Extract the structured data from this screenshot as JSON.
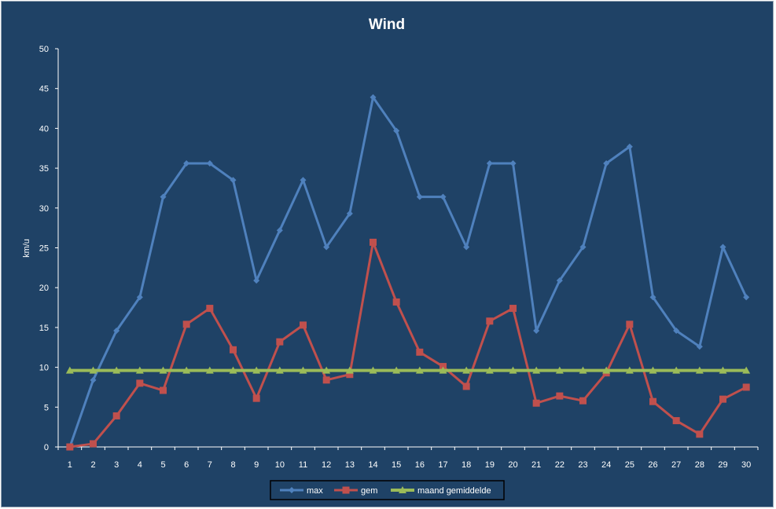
{
  "chart_data": {
    "type": "line",
    "title": "Wind",
    "xlabel": "",
    "ylabel": "km/u",
    "ylim": [
      0,
      50
    ],
    "yticks": [
      "0",
      "5",
      "10",
      "15",
      "20",
      "25",
      "30",
      "35",
      "40",
      "45",
      "50"
    ],
    "categories": [
      "1",
      "2",
      "3",
      "4",
      "5",
      "6",
      "7",
      "8",
      "9",
      "10",
      "11",
      "12",
      "13",
      "14",
      "15",
      "16",
      "17",
      "18",
      "19",
      "20",
      "21",
      "22",
      "23",
      "24",
      "25",
      "26",
      "27",
      "28",
      "29",
      "30"
    ],
    "grid": false,
    "legend_position": "bottom",
    "series": [
      {
        "name": "max",
        "color": "#4f81bd",
        "marker": "diamond",
        "values": [
          0,
          8.4,
          14.6,
          18.8,
          31.4,
          35.6,
          35.6,
          33.5,
          20.9,
          27.2,
          33.5,
          25.1,
          29.3,
          43.9,
          39.7,
          31.4,
          31.4,
          25.1,
          35.6,
          35.6,
          14.6,
          20.9,
          25.1,
          35.6,
          37.7,
          18.8,
          14.6,
          12.6,
          25.1,
          18.8
        ]
      },
      {
        "name": "gem",
        "color": "#c0504d",
        "marker": "square",
        "values": [
          0,
          0.4,
          3.9,
          8.0,
          7.1,
          15.4,
          17.4,
          12.2,
          6.1,
          13.2,
          15.3,
          8.4,
          9.1,
          25.7,
          18.2,
          11.9,
          10.1,
          7.6,
          15.8,
          17.4,
          5.5,
          6.4,
          5.8,
          9.3,
          15.4,
          5.7,
          3.3,
          1.6,
          6.0,
          7.5
        ]
      },
      {
        "name": "maand gemiddelde",
        "color": "#9bbb59",
        "marker": "triangle",
        "values": [
          9.6,
          9.6,
          9.6,
          9.6,
          9.6,
          9.6,
          9.6,
          9.6,
          9.6,
          9.6,
          9.6,
          9.6,
          9.6,
          9.6,
          9.6,
          9.6,
          9.6,
          9.6,
          9.6,
          9.6,
          9.6,
          9.6,
          9.6,
          9.6,
          9.6,
          9.6,
          9.6,
          9.6,
          9.6,
          9.6
        ]
      }
    ]
  }
}
